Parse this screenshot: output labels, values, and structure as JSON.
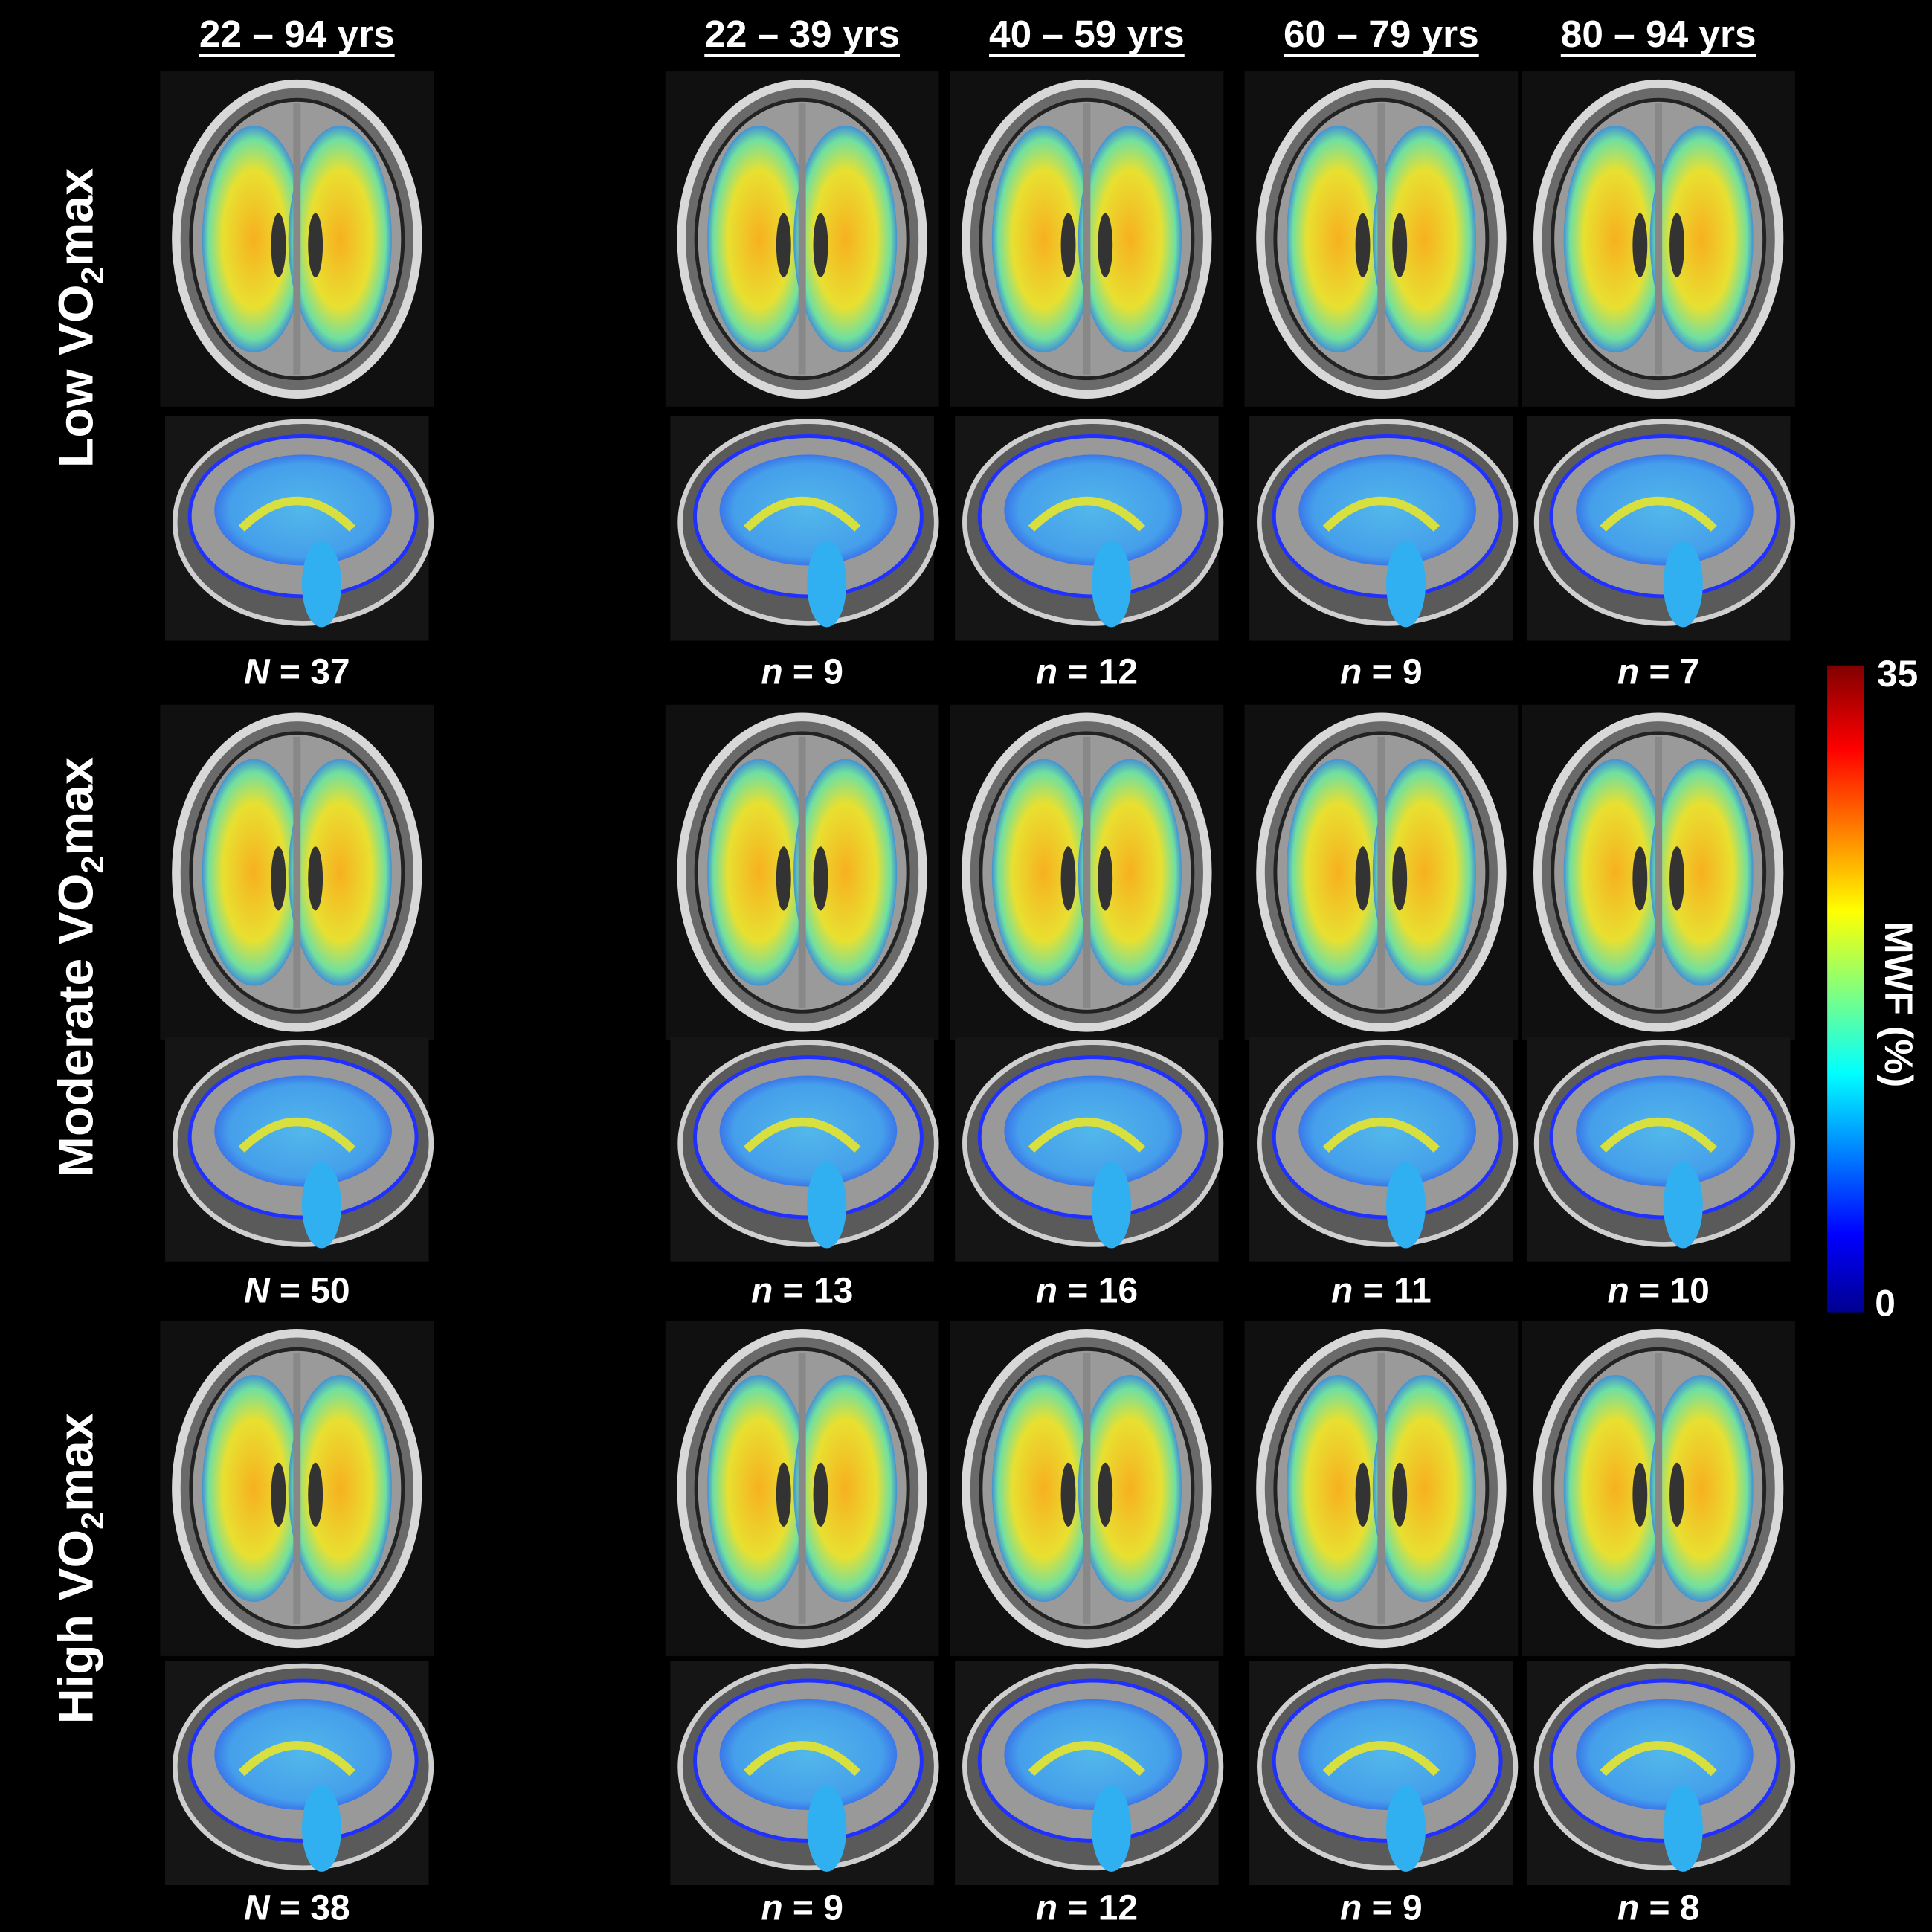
{
  "columns": [
    "22 – 94 yrs",
    "22 – 39 yrs",
    "40 – 59 yrs",
    "60 – 79 yrs",
    "80 – 94 yrs"
  ],
  "rows": [
    {
      "label": {
        "before": "Low VO",
        "sub": "2",
        "after": "max"
      },
      "counts": [
        {
          "symbol": "N",
          "equals": "=",
          "value": 37
        },
        {
          "symbol": "n",
          "equals": "=",
          "value": 9
        },
        {
          "symbol": "n",
          "equals": "=",
          "value": 12
        },
        {
          "symbol": "n",
          "equals": "=",
          "value": 9
        },
        {
          "symbol": "n",
          "equals": "=",
          "value": 7
        }
      ]
    },
    {
      "label": {
        "before": "Moderate VO",
        "sub": "2",
        "after": "max"
      },
      "counts": [
        {
          "symbol": "N",
          "equals": "=",
          "value": 50
        },
        {
          "symbol": "n",
          "equals": "=",
          "value": 13
        },
        {
          "symbol": "n",
          "equals": "=",
          "value": 16
        },
        {
          "symbol": "n",
          "equals": "=",
          "value": 11
        },
        {
          "symbol": "n",
          "equals": "=",
          "value": 10
        }
      ]
    },
    {
      "label": {
        "before": "High VO",
        "sub": "2",
        "after": "max"
      },
      "counts": [
        {
          "symbol": "N",
          "equals": "=",
          "value": 38
        },
        {
          "symbol": "n",
          "equals": "=",
          "value": 9
        },
        {
          "symbol": "n",
          "equals": "=",
          "value": 12
        },
        {
          "symbol": "n",
          "equals": "=",
          "value": 9
        },
        {
          "symbol": "n",
          "equals": "=",
          "value": 8
        }
      ]
    }
  ],
  "colorbar": {
    "label": "MWF (%)",
    "min": 0,
    "max": 35
  }
}
